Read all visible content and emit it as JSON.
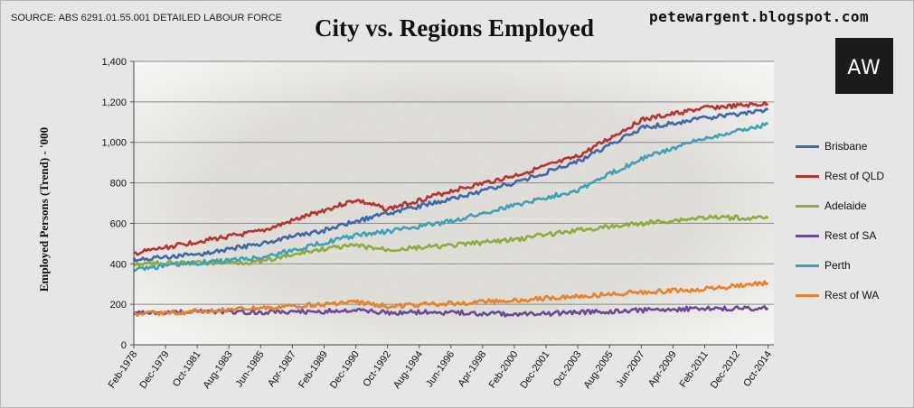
{
  "source_text": "SOURCE: ABS 6291.01.55.001 DETAILED LABOUR FORCE",
  "blog_text": "petewargent.blogspot.com",
  "logo_text": "AW",
  "colors": {
    "plot_background": "#d8d6d0",
    "frame_background": "#e6e6e6"
  },
  "chart_data": {
    "type": "line",
    "title": "City vs. Regions Employed",
    "xlabel": "",
    "ylabel": "Employed Persons (Trend) - '000",
    "ylim": [
      0,
      1400
    ],
    "yticks": [
      "0",
      "200",
      "400",
      "600",
      "800",
      "1,000",
      "1,200",
      "1,400"
    ],
    "xlim": [
      "Feb-1978",
      "Feb-2015"
    ],
    "xtick_labels": [
      "Feb-1978",
      "Dec-1979",
      "Oct-1981",
      "Aug-1983",
      "Jun-1985",
      "Apr-1987",
      "Feb-1989",
      "Dec-1990",
      "Oct-1992",
      "Aug-1994",
      "Jun-1996",
      "Apr-1998",
      "Feb-2000",
      "Dec-2001",
      "Oct-2003",
      "Aug-2005",
      "Jun-2007",
      "Apr-2009",
      "Feb-2011",
      "Dec-2012",
      "Oct-2014"
    ],
    "x": [
      "Feb-1978",
      "Oct-1981",
      "Jun-1985",
      "Feb-1989",
      "Dec-1990",
      "Oct-1992",
      "Jun-1996",
      "Feb-2000",
      "Oct-2003",
      "Jun-2007",
      "Feb-2011",
      "Oct-2014"
    ],
    "grid": true,
    "legend_position": "right",
    "series": [
      {
        "name": "Brisbane",
        "color": "#3d69a8",
        "values": [
          420,
          445,
          500,
          565,
          610,
          650,
          720,
          800,
          905,
          1070,
          1120,
          1160
        ]
      },
      {
        "name": "Rest of QLD",
        "color": "#b5342f",
        "values": [
          450,
          510,
          560,
          665,
          715,
          670,
          760,
          835,
          930,
          1110,
          1170,
          1190
        ]
      },
      {
        "name": "Adelaide",
        "color": "#8fab3c",
        "values": [
          400,
          405,
          410,
          475,
          490,
          470,
          490,
          520,
          565,
          600,
          630,
          625
        ]
      },
      {
        "name": "Rest of SA",
        "color": "#6a4a96",
        "values": [
          155,
          165,
          160,
          165,
          170,
          160,
          160,
          150,
          160,
          170,
          180,
          180
        ]
      },
      {
        "name": "Perth",
        "color": "#3fa1b7",
        "values": [
          375,
          405,
          430,
          505,
          540,
          560,
          610,
          690,
          765,
          920,
          1020,
          1090
        ]
      },
      {
        "name": "Rest of WA",
        "color": "#e8812a",
        "values": [
          150,
          165,
          180,
          200,
          210,
          190,
          205,
          220,
          240,
          260,
          275,
          305
        ]
      }
    ]
  }
}
